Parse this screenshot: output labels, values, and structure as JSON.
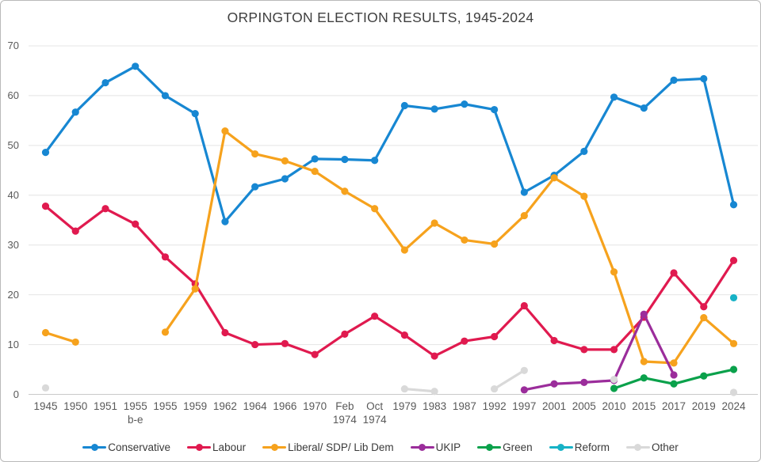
{
  "title": "ORPINGTON ELECTION RESULTS, 1945-2024",
  "chart_data": {
    "type": "line",
    "title": "ORPINGTON ELECTION RESULTS, 1945-2024",
    "xlabel": "",
    "ylabel": "",
    "ylim": [
      0,
      70
    ],
    "yticks": [
      0,
      10,
      20,
      30,
      40,
      50,
      60,
      70
    ],
    "grid": true,
    "legend_position": "bottom",
    "categories": [
      "1945",
      "1950",
      "1951",
      "1955\nb-e",
      "1955",
      "1959",
      "1962",
      "1964",
      "1966",
      "1970",
      "Feb\n1974",
      "Oct\n1974",
      "1979",
      "1983",
      "1987",
      "1992",
      "1997",
      "2001",
      "2005",
      "2010",
      "2015",
      "2017",
      "2019",
      "2024"
    ],
    "series": [
      {
        "name": "Conservative",
        "color": "#1787d2",
        "values": [
          48.6,
          56.7,
          62.6,
          65.9,
          60.0,
          56.4,
          34.7,
          41.7,
          43.3,
          47.3,
          47.2,
          47.0,
          58.0,
          57.3,
          58.3,
          57.2,
          40.6,
          44.0,
          48.8,
          59.7,
          57.5,
          63.1,
          63.4,
          38.1
        ]
      },
      {
        "name": "Labour",
        "color": "#e01a4f",
        "values": [
          37.8,
          32.8,
          37.3,
          34.2,
          27.6,
          22.2,
          12.4,
          10.0,
          10.2,
          8.0,
          12.1,
          15.7,
          11.9,
          7.7,
          10.7,
          11.6,
          17.8,
          10.8,
          9.0,
          9.0,
          15.5,
          24.4,
          17.6,
          26.9
        ]
      },
      {
        "name": "Liberal/ SDP/ Lib Dem",
        "color": "#f6a21d",
        "values": [
          12.4,
          10.5,
          null,
          null,
          12.5,
          21.2,
          52.9,
          48.3,
          46.9,
          44.8,
          40.8,
          37.3,
          29.0,
          34.4,
          31.0,
          30.2,
          35.9,
          43.5,
          39.8,
          24.6,
          6.6,
          6.3,
          15.4,
          10.2
        ]
      },
      {
        "name": "UKIP",
        "color": "#9b2d9b",
        "values": [
          null,
          null,
          null,
          null,
          null,
          null,
          null,
          null,
          null,
          null,
          null,
          null,
          null,
          null,
          null,
          null,
          0.9,
          2.1,
          2.4,
          2.8,
          16.1,
          3.9,
          null,
          null
        ]
      },
      {
        "name": "Green",
        "color": "#0aa14b",
        "values": [
          null,
          null,
          null,
          null,
          null,
          null,
          null,
          null,
          null,
          null,
          null,
          null,
          null,
          null,
          null,
          null,
          null,
          null,
          null,
          1.2,
          3.3,
          2.1,
          3.7,
          5.0
        ]
      },
      {
        "name": "Reform",
        "color": "#17b2c6",
        "values": [
          null,
          null,
          null,
          null,
          null,
          null,
          null,
          null,
          null,
          null,
          null,
          null,
          null,
          null,
          null,
          null,
          null,
          null,
          null,
          null,
          null,
          null,
          null,
          19.4
        ]
      },
      {
        "name": "Other",
        "color": "#d9d9d9",
        "values": [
          1.3,
          null,
          null,
          null,
          null,
          null,
          null,
          null,
          null,
          null,
          null,
          null,
          1.1,
          0.6,
          null,
          1.1,
          4.8,
          null,
          null,
          3.0,
          null,
          null,
          null,
          0.4
        ]
      }
    ]
  }
}
